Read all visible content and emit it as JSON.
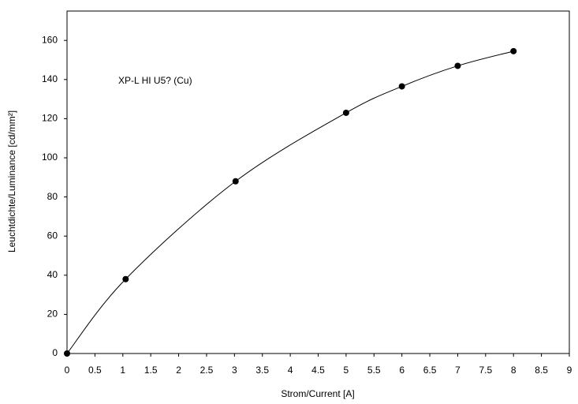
{
  "chart_data": {
    "type": "scatter",
    "annotation": "XP-L HI U5? (Cu)",
    "xlabel": "Strom/Current [A]",
    "ylabel": "Leuchtdichte/Luminance [cd/mm²]",
    "x": [
      0,
      1.05,
      3.02,
      5,
      6,
      7,
      8
    ],
    "values": [
      0,
      38,
      88,
      123,
      136.5,
      147,
      154.5
    ],
    "color": "#000000",
    "smooth_line": true,
    "xlim": [
      0,
      9
    ],
    "xticks": [
      0,
      0.5,
      1,
      1.5,
      2,
      2.5,
      3,
      3.5,
      4,
      4.5,
      5,
      5.5,
      6,
      6.5,
      7,
      7.5,
      8,
      8.5,
      9
    ],
    "ylim": [
      0,
      175
    ],
    "yticks": [
      0,
      20,
      40,
      60,
      80,
      100,
      120,
      140,
      160
    ]
  }
}
